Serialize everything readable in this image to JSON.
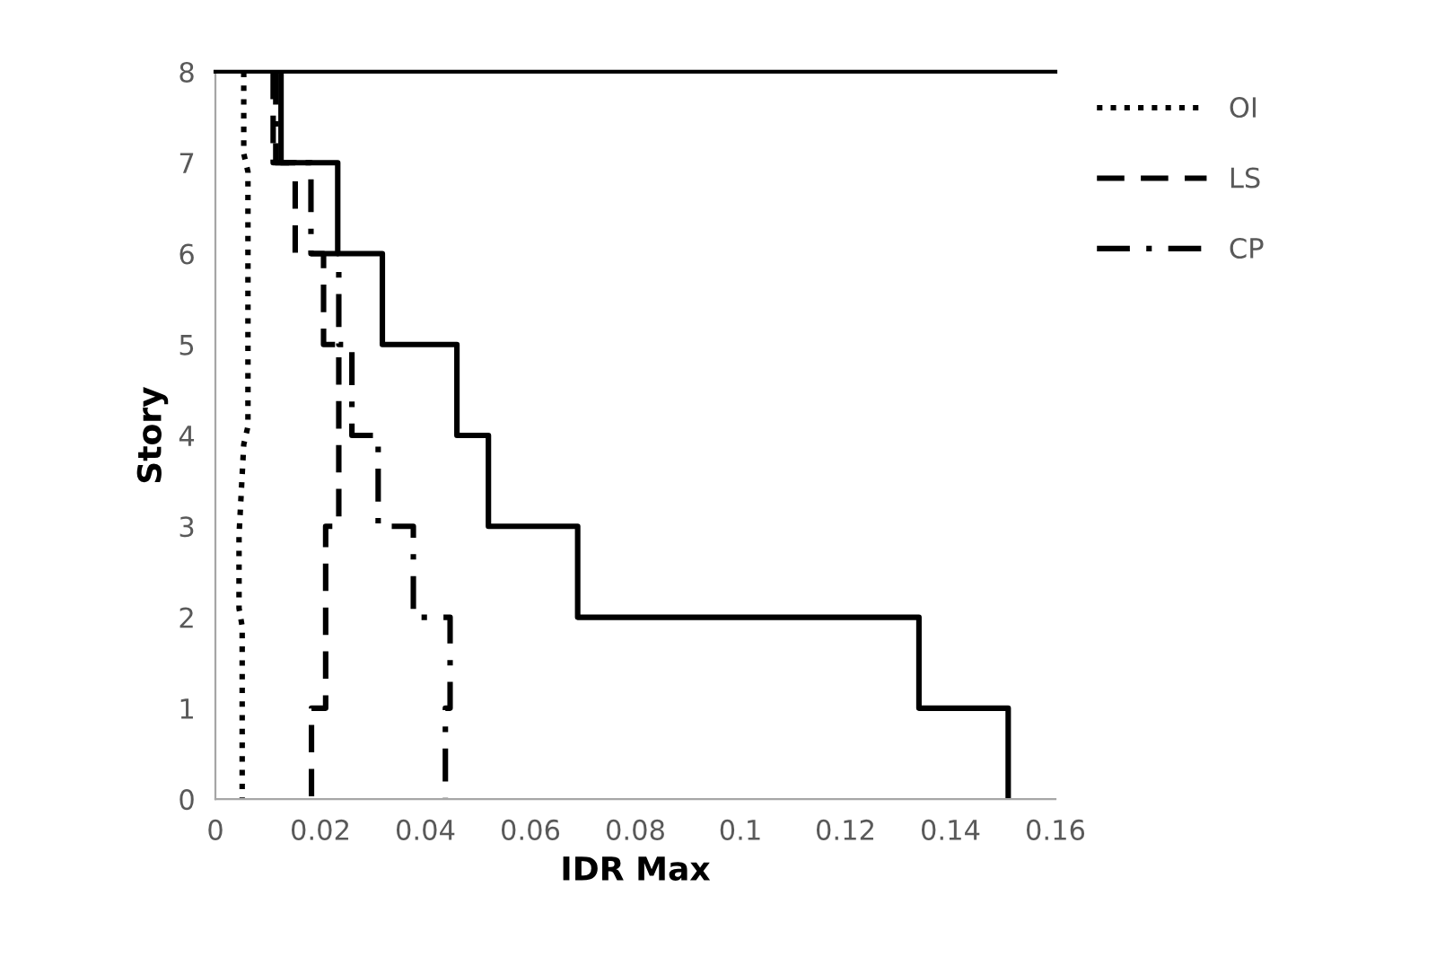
{
  "chart_data": {
    "type": "line",
    "xlabel": "IDR Max",
    "ylabel": "Story",
    "xlim": [
      0,
      0.16
    ],
    "xticks": [
      0,
      0.02,
      0.04,
      0.06,
      0.08,
      0.1,
      0.12,
      0.14,
      0.16
    ],
    "ylim": [
      0,
      8
    ],
    "yticks": [
      0,
      1,
      2,
      3,
      4,
      5,
      6,
      7,
      8
    ],
    "grid": false,
    "legend": "right",
    "marker": "none",
    "series": [
      {
        "name": "OI",
        "color": "#000000",
        "line_style": "dotted",
        "x": [
          0.0054,
          0.0054,
          0.0062,
          0.0062,
          0.0054,
          0.0045,
          0.0045,
          0.0051,
          0.0051
        ],
        "values": [
          8,
          7.1,
          6.9,
          4.1,
          3.9,
          2.9,
          2.1,
          1.9,
          0
        ]
      },
      {
        "name": "LS",
        "color": "#000000",
        "line_style": "dashed",
        "x": [
          0.011,
          0.011,
          0.0152,
          0.0152,
          0.0206,
          0.0206,
          0.0235,
          0.0235,
          0.021,
          0.021,
          0.0183,
          0.0183
        ],
        "values": [
          8,
          7,
          7,
          6,
          6,
          5,
          5,
          3,
          3,
          1,
          1,
          0
        ]
      },
      {
        "name": "CP",
        "color": "#000000",
        "line_style": "dashdot",
        "x": [
          0.0115,
          0.0115,
          0.0182,
          0.0182,
          0.0235,
          0.0235,
          0.026,
          0.026,
          0.031,
          0.031,
          0.0377,
          0.0377,
          0.0447,
          0.0447,
          0.0438,
          0.0438
        ],
        "values": [
          8,
          7,
          7,
          6,
          6,
          5,
          5,
          4,
          4,
          3,
          3,
          2,
          2,
          1,
          1,
          0
        ]
      },
      {
        "color": "#000000",
        "line_style": "solid",
        "x": [
          0.0125,
          0.0125,
          0.0233,
          0.0233,
          0.0318,
          0.0318,
          0.046,
          0.046,
          0.052,
          0.052,
          0.069,
          0.069,
          0.134,
          0.134,
          0.151,
          0.151
        ],
        "values": [
          8,
          7,
          7,
          6,
          6,
          5,
          5,
          4,
          4,
          3,
          3,
          2,
          2,
          1,
          1,
          0
        ]
      }
    ]
  }
}
